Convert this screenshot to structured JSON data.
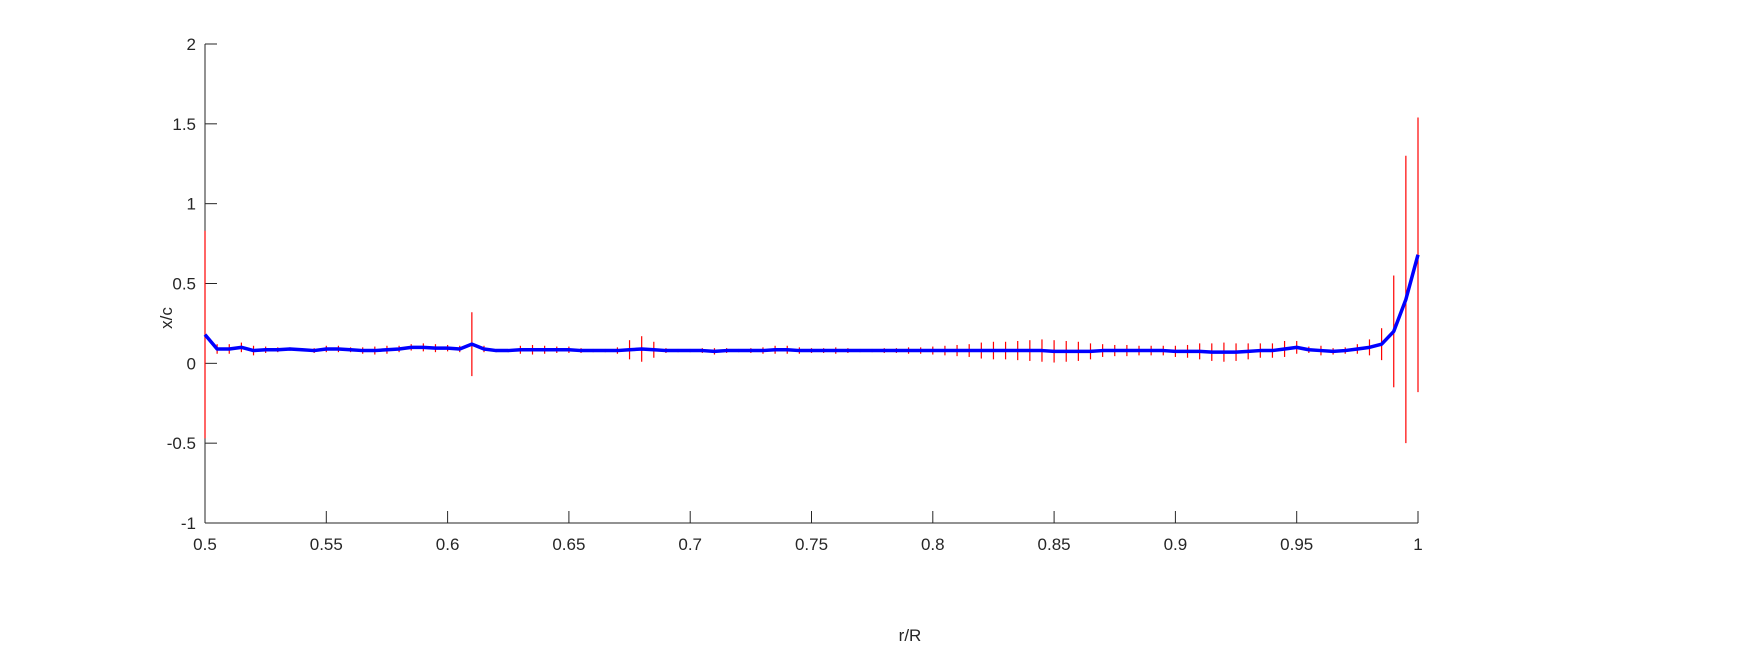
{
  "chart_data": {
    "type": "errorbar",
    "xlabel": "r/R",
    "ylabel": "x/c",
    "xlim": [
      0.5,
      1
    ],
    "ylim": [
      -1,
      2
    ],
    "xticks": [
      0.5,
      0.55,
      0.6,
      0.65,
      0.7,
      0.75,
      0.8,
      0.85,
      0.9,
      0.95,
      1
    ],
    "yticks": [
      -1,
      -0.5,
      0,
      0.5,
      1,
      1.5,
      2
    ],
    "color": "#0000ff",
    "error_color": "#ff0000",
    "x": [
      0.5,
      0.505,
      0.51,
      0.515,
      0.52,
      0.525,
      0.53,
      0.535,
      0.54,
      0.545,
      0.55,
      0.555,
      0.56,
      0.565,
      0.57,
      0.575,
      0.58,
      0.585,
      0.59,
      0.595,
      0.6,
      0.605,
      0.61,
      0.615,
      0.62,
      0.625,
      0.63,
      0.635,
      0.64,
      0.645,
      0.65,
      0.655,
      0.66,
      0.665,
      0.67,
      0.675,
      0.68,
      0.685,
      0.69,
      0.695,
      0.7,
      0.705,
      0.71,
      0.715,
      0.72,
      0.725,
      0.73,
      0.735,
      0.74,
      0.745,
      0.75,
      0.755,
      0.76,
      0.765,
      0.77,
      0.775,
      0.78,
      0.785,
      0.79,
      0.795,
      0.8,
      0.805,
      0.81,
      0.815,
      0.82,
      0.825,
      0.83,
      0.835,
      0.84,
      0.845,
      0.85,
      0.855,
      0.86,
      0.865,
      0.87,
      0.875,
      0.88,
      0.885,
      0.89,
      0.895,
      0.9,
      0.905,
      0.91,
      0.915,
      0.92,
      0.925,
      0.93,
      0.935,
      0.94,
      0.945,
      0.95,
      0.955,
      0.96,
      0.965,
      0.97,
      0.975,
      0.98,
      0.985,
      0.99,
      0.995,
      1
    ],
    "values": [
      0.18,
      0.09,
      0.09,
      0.1,
      0.08,
      0.085,
      0.085,
      0.09,
      0.085,
      0.08,
      0.09,
      0.09,
      0.085,
      0.08,
      0.08,
      0.085,
      0.09,
      0.1,
      0.1,
      0.095,
      0.095,
      0.09,
      0.12,
      0.09,
      0.08,
      0.08,
      0.085,
      0.085,
      0.085,
      0.085,
      0.085,
      0.08,
      0.08,
      0.08,
      0.08,
      0.085,
      0.09,
      0.085,
      0.08,
      0.08,
      0.08,
      0.08,
      0.075,
      0.08,
      0.08,
      0.08,
      0.08,
      0.085,
      0.085,
      0.08,
      0.08,
      0.08,
      0.08,
      0.08,
      0.08,
      0.08,
      0.08,
      0.08,
      0.08,
      0.08,
      0.08,
      0.08,
      0.08,
      0.08,
      0.08,
      0.08,
      0.08,
      0.08,
      0.08,
      0.08,
      0.075,
      0.075,
      0.075,
      0.075,
      0.08,
      0.08,
      0.08,
      0.08,
      0.08,
      0.08,
      0.075,
      0.075,
      0.075,
      0.07,
      0.07,
      0.07,
      0.075,
      0.08,
      0.08,
      0.09,
      0.1,
      0.085,
      0.08,
      0.075,
      0.08,
      0.09,
      0.1,
      0.12,
      0.2,
      0.4,
      0.68
    ],
    "errors": [
      0.65,
      0.03,
      0.03,
      0.03,
      0.03,
      0.02,
      0.015,
      0.01,
      0.01,
      0.015,
      0.02,
      0.02,
      0.015,
      0.02,
      0.025,
      0.025,
      0.02,
      0.02,
      0.025,
      0.025,
      0.02,
      0.02,
      0.2,
      0.02,
      0.01,
      0.01,
      0.025,
      0.03,
      0.025,
      0.02,
      0.02,
      0.015,
      0.01,
      0.01,
      0.02,
      0.06,
      0.08,
      0.05,
      0.015,
      0.01,
      0.01,
      0.015,
      0.02,
      0.015,
      0.01,
      0.015,
      0.02,
      0.025,
      0.025,
      0.02,
      0.015,
      0.015,
      0.02,
      0.015,
      0.01,
      0.01,
      0.015,
      0.015,
      0.02,
      0.02,
      0.025,
      0.03,
      0.035,
      0.04,
      0.05,
      0.055,
      0.055,
      0.06,
      0.065,
      0.07,
      0.07,
      0.065,
      0.06,
      0.05,
      0.04,
      0.035,
      0.035,
      0.03,
      0.03,
      0.03,
      0.035,
      0.04,
      0.05,
      0.055,
      0.06,
      0.055,
      0.05,
      0.045,
      0.045,
      0.05,
      0.04,
      0.02,
      0.03,
      0.02,
      0.02,
      0.03,
      0.05,
      0.1,
      0.35,
      0.9,
      0.86
    ]
  }
}
